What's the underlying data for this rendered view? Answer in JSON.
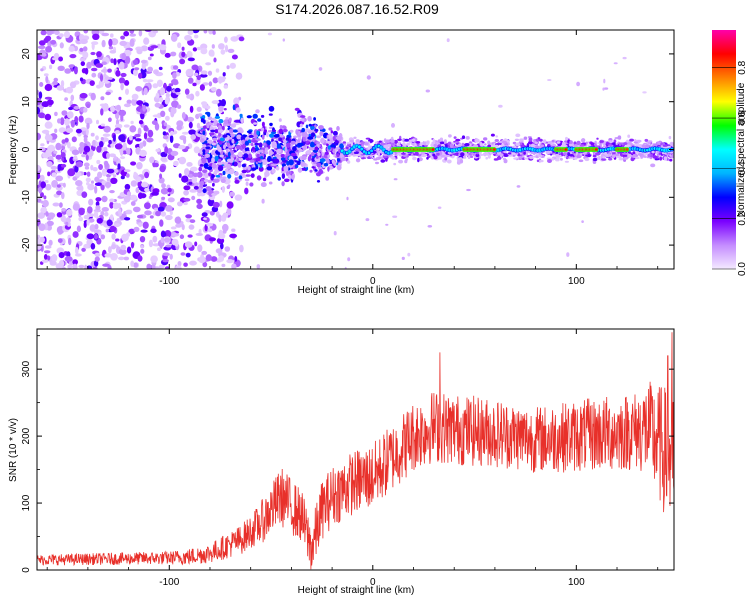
{
  "title": "S174.2026.087.16.52.R09",
  "chart_data": [
    {
      "type": "heatmap",
      "xlabel": "Height of straight line (km)",
      "ylabel": "Frequency (Hz)",
      "xlim": [
        -165,
        148
      ],
      "ylim": [
        -25,
        25
      ],
      "xticks": [
        "-100",
        "0",
        "100"
      ],
      "xtick_values": [
        -100,
        0,
        100
      ],
      "yticks": [
        "-20",
        "-10",
        "0",
        "10",
        "20"
      ],
      "ytick_values": [
        -20,
        -10,
        0,
        10,
        20
      ],
      "colorbar": {
        "label": "Normalized spectral amplitude",
        "range": [
          0,
          0.95
        ],
        "ticks": [
          "0.0",
          "0.2",
          "0.4",
          "0.6",
          "0.8"
        ],
        "tick_values": [
          0,
          0.2,
          0.4,
          0.6,
          0.8
        ],
        "colors": [
          "#f4eaff",
          "#c48cff",
          "#7a00ff",
          "#0000ff",
          "#00b4ff",
          "#00ffff",
          "#00ff00",
          "#ffff00",
          "#ff8000",
          "#ff0000",
          "#ff00aa"
        ]
      },
      "features": {
        "noise_region_end_km": -85,
        "transition_region_km": [
          -85,
          -15
        ],
        "stable_signal_start_km": -15,
        "signal_frequency_hz": 0,
        "peak_signal_segments_km": [
          [
            10,
            30
          ],
          [
            45,
            60
          ],
          [
            90,
            95
          ],
          [
            100,
            110
          ],
          [
            120,
            125
          ]
        ]
      }
    },
    {
      "type": "line",
      "xlabel": "Height of straight line (km)",
      "ylabel": "SNR (10 * v/v)",
      "xlim": [
        -165,
        148
      ],
      "ylim": [
        0,
        360
      ],
      "xticks": [
        "-100",
        "0",
        "100"
      ],
      "xtick_values": [
        -100,
        0,
        100
      ],
      "yticks": [
        "0",
        "100",
        "200",
        "300"
      ],
      "ytick_values": [
        0,
        100,
        200,
        300
      ],
      "color": "#e8302a",
      "trend": {
        "x": [
          -165,
          -100,
          -90,
          -80,
          -65,
          -55,
          -45,
          -35,
          -30,
          -25,
          -20,
          -10,
          0,
          10,
          20,
          30,
          40,
          60,
          80,
          100,
          120,
          135,
          148
        ],
        "y": [
          15,
          18,
          20,
          25,
          45,
          70,
          110,
          80,
          30,
          90,
          110,
          130,
          140,
          170,
          200,
          215,
          210,
          205,
          195,
          200,
          205,
          210,
          160
        ]
      },
      "noise_amplitude": {
        "x": [
          -165,
          -100,
          -80,
          -60,
          -45,
          -35,
          -25,
          0,
          30,
          80,
          130,
          148
        ],
        "y": [
          8,
          10,
          15,
          25,
          45,
          40,
          45,
          50,
          55,
          50,
          60,
          110
        ]
      },
      "peaks": [
        {
          "x": 33,
          "y": 325
        },
        {
          "x": 147,
          "y": 355
        },
        {
          "x": 145,
          "y": 320
        }
      ]
    }
  ]
}
